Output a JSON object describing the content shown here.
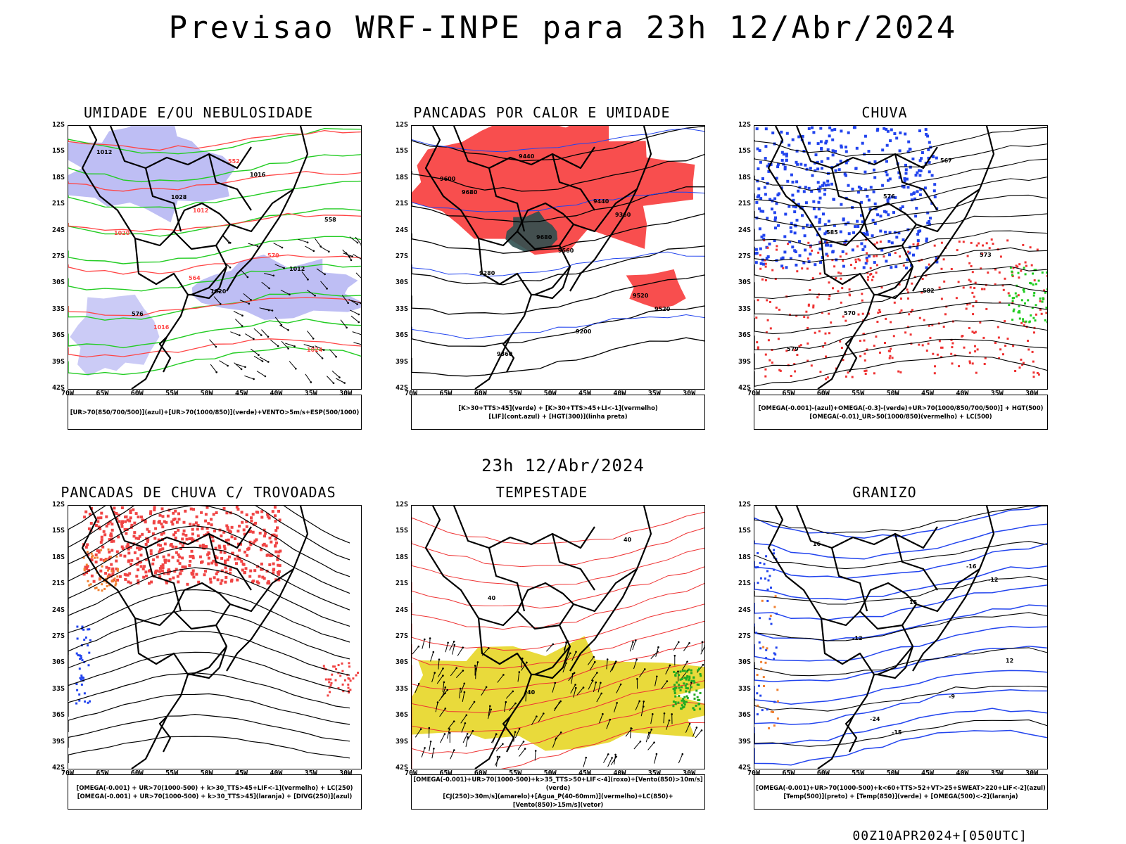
{
  "header": {
    "title": "Previsao WRF-INPE  para 23h 12/Abr/2024"
  },
  "middle": {
    "subtitle": "23h 12/Abr/2024"
  },
  "footer": {
    "run_label": "00Z10APR2024+[050UTC]"
  },
  "axes": {
    "lat_ticks": [
      "12S",
      "15S",
      "18S",
      "21S",
      "24S",
      "27S",
      "30S",
      "33S",
      "36S",
      "39S",
      "42S"
    ],
    "lon_ticks": [
      "70W",
      "65W",
      "60W",
      "55W",
      "50W",
      "45W",
      "40W",
      "35W",
      "30W"
    ]
  },
  "panels": [
    {
      "title": "UMIDADE E/OU NEBULOSIDADE",
      "legend_lines": [
        "[UR>70(850/700/500)](azul)+[UR>70(1000/850)](verde)+VENTO>5m/s+ESP(500/1000)"
      ],
      "contour_labels": [
        "1012",
        "1012",
        "1012",
        "1016",
        "1016",
        "1020",
        "1020",
        "1024",
        "1028",
        "570",
        "576",
        "552",
        "558",
        "564"
      ],
      "colors": {
        "fill_a": "#a8a8f0",
        "fill_b": "#22cc22",
        "contour_a": "#000000",
        "contour_b": "#ff4444"
      }
    },
    {
      "title": "PANCADAS POR CALOR E UMIDADE",
      "legend_lines": [
        "[K>30+TTS>45](verde) + [K>30+TTS>45+LI<-1](vermelho)",
        "[LIF](cont.azul) + [HGT(300)](linha preta)"
      ],
      "contour_labels": [
        "9680",
        "9560",
        "9520",
        "9440",
        "9360",
        "9280",
        "9200",
        "9600",
        "9680",
        "9520",
        "9360",
        "9440"
      ],
      "colors": {
        "fill_a": "#f84444",
        "fill_b": "#2f5050",
        "contour_a": "#000000",
        "contour_b": "#2244ee"
      }
    },
    {
      "title": "CHUVA",
      "legend_lines": [
        "[OMEGA(-0.001)-(azul)+OMEGA(-0.3)-(verde)+UR>70(1000/850/700/500)] + HGT(500)",
        "[OMEGA(-0.01)_UR>50(1000/850)(vermelho) + LC(500)"
      ],
      "contour_labels": [
        "585",
        "582",
        "579",
        "576",
        "573",
        "570",
        "567"
      ],
      "colors": {
        "fill_a": "#2244ee",
        "fill_b": "#ee3333",
        "contour_a": "#000000",
        "contour_b": "#22cc22"
      }
    },
    {
      "title": "PANCADAS DE CHUVA C/ TROVOADAS",
      "legend_lines": [
        "[OMEGA(-0.001) + UR>70(1000-500) + k>30_TTS>45+LIF<-1](vermelho) + LC(250)",
        "[OMEGA(-0.001) + UR>70(1000-500) + k>30_TTS>45](laranja) + [DIVG(250)](azul)"
      ],
      "contour_labels": [],
      "colors": {
        "fill_a": "#f04444",
        "fill_b": "#f08030",
        "contour_a": "#000000",
        "contour_b": "#2244ee"
      }
    },
    {
      "title": "TEMPESTADE",
      "legend_lines": [
        "[OMEGA(-0.001)+UR>70(1000-500)+k>35_TTS>50+LIF<-4](roxo)+[Vento(850)>10m/s](verde)",
        "[CJ(250)>30m/s](amarelo)+[Agua_P(40-60mm)](vermelho)+LC(850)+[Vento(850)>15m/s](vetor)"
      ],
      "contour_labels": [
        "40",
        "40",
        "40"
      ],
      "colors": {
        "fill_a": "#e8d830",
        "fill_b": "#22aa22",
        "contour_a": "#ee3333",
        "contour_b": "#000000"
      }
    },
    {
      "title": "GRANIZO",
      "legend_lines": [
        "[OMEGA(-0.001)+UR>70(1000-500)+k<60+TTS>52+VT>25+SWEAT>220+LIF<-2](azul)",
        "[Temp(500)](preto) + [Temp(850)](verde) + [OMEGA(500)<-2](laranja)"
      ],
      "contour_labels": [
        "-15",
        "-12",
        "-12",
        "-9",
        "16",
        "15",
        "12",
        "-24",
        "-16"
      ],
      "colors": {
        "fill_a": "#22cc22",
        "fill_b": "#2244ee",
        "contour_a": "#000000",
        "contour_b": "#22cc22"
      }
    }
  ]
}
